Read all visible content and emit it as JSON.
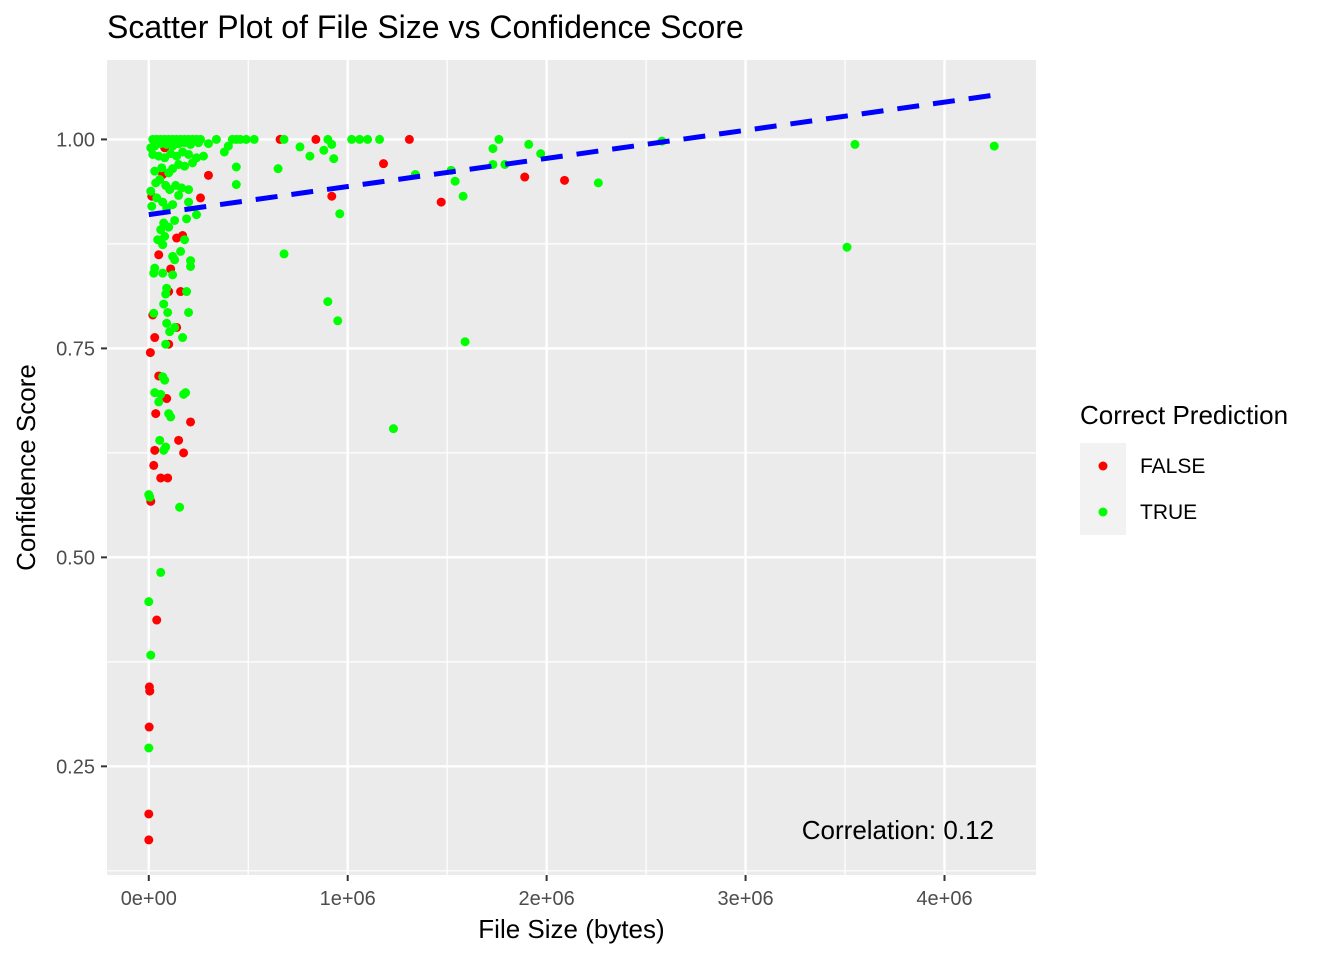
{
  "chart_data": {
    "type": "scatter",
    "title": "Scatter Plot of File Size vs Confidence Score",
    "xlabel": "File Size (bytes)",
    "ylabel": "Confidence Score",
    "xlim": [
      -210000,
      4460000
    ],
    "ylim": [
      0.12,
      1.095
    ],
    "x_ticks": [
      0,
      1000000,
      2000000,
      3000000,
      4000000
    ],
    "x_tick_labels": [
      "0e+00",
      "1e+06",
      "2e+06",
      "3e+06",
      "4e+06"
    ],
    "y_ticks": [
      0.25,
      0.5,
      0.75,
      1.0
    ],
    "y_tick_labels": [
      "0.25",
      "0.50",
      "0.75",
      "1.00"
    ],
    "grid": true,
    "legend": {
      "title": "Correct Prediction",
      "placement": "right",
      "entries": [
        {
          "label": "FALSE",
          "color": "#ff0000"
        },
        {
          "label": "TRUE",
          "color": "#00ff00"
        }
      ]
    },
    "annotation": "Correlation: 0.12",
    "trend_line": {
      "color": "#0000ff",
      "style": "dashed",
      "x": [
        0,
        4250000
      ],
      "y": [
        0.91,
        1.053
      ]
    },
    "series": [
      {
        "name": "FALSE",
        "color": "#ff0000",
        "points": [
          [
            0,
            0.162
          ],
          [
            0,
            0.193
          ],
          [
            2000,
            0.297
          ],
          [
            5000,
            0.34
          ],
          [
            3000,
            0.345
          ],
          [
            10000,
            0.567
          ],
          [
            25000,
            0.61
          ],
          [
            30000,
            0.628
          ],
          [
            60000,
            0.595
          ],
          [
            95000,
            0.595
          ],
          [
            150000,
            0.64
          ],
          [
            175000,
            0.625
          ],
          [
            210000,
            0.662
          ],
          [
            40000,
            0.425
          ],
          [
            35000,
            0.672
          ],
          [
            50000,
            0.717
          ],
          [
            90000,
            0.69
          ],
          [
            8000,
            0.745
          ],
          [
            30000,
            0.763
          ],
          [
            100000,
            0.755
          ],
          [
            20000,
            0.79
          ],
          [
            140000,
            0.775
          ],
          [
            100000,
            0.818
          ],
          [
            160000,
            0.818
          ],
          [
            110000,
            0.845
          ],
          [
            50000,
            0.862
          ],
          [
            140000,
            0.882
          ],
          [
            170000,
            0.885
          ],
          [
            15000,
            0.932
          ],
          [
            70000,
            0.958
          ],
          [
            260000,
            0.93
          ],
          [
            300000,
            0.957
          ],
          [
            80000,
            0.99
          ],
          [
            150000,
            0.995
          ],
          [
            660000,
            1.0
          ],
          [
            840000,
            1.0
          ],
          [
            1310000,
            1.0
          ],
          [
            920000,
            0.932
          ],
          [
            1180000,
            0.971
          ],
          [
            1470000,
            0.925
          ],
          [
            1890000,
            0.955
          ],
          [
            2090000,
            0.951
          ]
        ]
      },
      {
        "name": "TRUE",
        "color": "#00ff00",
        "points": [
          [
            0,
            0.272
          ],
          [
            10000,
            0.383
          ],
          [
            0,
            0.447
          ],
          [
            60000,
            0.482
          ],
          [
            155000,
            0.56
          ],
          [
            5000,
            0.572
          ],
          [
            0,
            0.575
          ],
          [
            55000,
            0.64
          ],
          [
            75000,
            0.628
          ],
          [
            85000,
            0.632
          ],
          [
            110000,
            0.668
          ],
          [
            100000,
            0.672
          ],
          [
            30000,
            0.697
          ],
          [
            175000,
            0.695
          ],
          [
            185000,
            0.697
          ],
          [
            80000,
            0.712
          ],
          [
            70000,
            0.716
          ],
          [
            50000,
            0.686
          ],
          [
            60000,
            0.695
          ],
          [
            25000,
            0.792
          ],
          [
            170000,
            0.763
          ],
          [
            85000,
            0.755
          ],
          [
            90000,
            0.78
          ],
          [
            130000,
            0.775
          ],
          [
            105000,
            0.77
          ],
          [
            95000,
            0.793
          ],
          [
            200000,
            0.793
          ],
          [
            75000,
            0.803
          ],
          [
            85000,
            0.815
          ],
          [
            90000,
            0.822
          ],
          [
            190000,
            0.818
          ],
          [
            25000,
            0.84
          ],
          [
            30000,
            0.846
          ],
          [
            70000,
            0.84
          ],
          [
            120000,
            0.838
          ],
          [
            210000,
            0.848
          ],
          [
            210000,
            0.855
          ],
          [
            160000,
            0.866
          ],
          [
            120000,
            0.86
          ],
          [
            130000,
            0.856
          ],
          [
            45000,
            0.88
          ],
          [
            70000,
            0.874
          ],
          [
            80000,
            0.884
          ],
          [
            60000,
            0.892
          ],
          [
            75000,
            0.9
          ],
          [
            100000,
            0.895
          ],
          [
            130000,
            0.903
          ],
          [
            180000,
            0.88
          ],
          [
            190000,
            0.905
          ],
          [
            15000,
            0.92
          ],
          [
            40000,
            0.93
          ],
          [
            70000,
            0.925
          ],
          [
            90000,
            0.918
          ],
          [
            120000,
            0.922
          ],
          [
            150000,
            0.933
          ],
          [
            200000,
            0.925
          ],
          [
            240000,
            0.91
          ],
          [
            10000,
            0.938
          ],
          [
            35000,
            0.948
          ],
          [
            55000,
            0.952
          ],
          [
            85000,
            0.945
          ],
          [
            105000,
            0.94
          ],
          [
            135000,
            0.945
          ],
          [
            165000,
            0.942
          ],
          [
            200000,
            0.94
          ],
          [
            30000,
            0.962
          ],
          [
            65000,
            0.966
          ],
          [
            100000,
            0.96
          ],
          [
            120000,
            0.965
          ],
          [
            150000,
            0.97
          ],
          [
            180000,
            0.968
          ],
          [
            220000,
            0.972
          ],
          [
            20000,
            0.982
          ],
          [
            50000,
            0.98
          ],
          [
            80000,
            0.978
          ],
          [
            110000,
            0.983
          ],
          [
            140000,
            0.98
          ],
          [
            170000,
            0.985
          ],
          [
            200000,
            0.982
          ],
          [
            240000,
            0.978
          ],
          [
            275000,
            0.98
          ],
          [
            10000,
            0.99
          ],
          [
            30000,
            0.992
          ],
          [
            60000,
            0.995
          ],
          [
            90000,
            0.994
          ],
          [
            120000,
            0.992
          ],
          [
            150000,
            0.995
          ],
          [
            180000,
            0.996
          ],
          [
            210000,
            0.994
          ],
          [
            250000,
            0.996
          ],
          [
            20000,
            1.0
          ],
          [
            40000,
            1.0
          ],
          [
            60000,
            1.0
          ],
          [
            80000,
            1.0
          ],
          [
            100000,
            1.0
          ],
          [
            120000,
            1.0
          ],
          [
            140000,
            1.0
          ],
          [
            160000,
            1.0
          ],
          [
            180000,
            1.0
          ],
          [
            200000,
            1.0
          ],
          [
            220000,
            1.0
          ],
          [
            240000,
            1.0
          ],
          [
            260000,
            1.0
          ],
          [
            300000,
            0.995
          ],
          [
            340000,
            1.0
          ],
          [
            380000,
            0.985
          ],
          [
            400000,
            0.992
          ],
          [
            420000,
            1.0
          ],
          [
            440000,
            1.0
          ],
          [
            460000,
            1.0
          ],
          [
            490000,
            1.0
          ],
          [
            530000,
            1.0
          ],
          [
            440000,
            0.967
          ],
          [
            440000,
            0.946
          ],
          [
            650000,
            0.965
          ],
          [
            680000,
            1.0
          ],
          [
            680000,
            0.863
          ],
          [
            760000,
            0.991
          ],
          [
            810000,
            0.98
          ],
          [
            880000,
            0.987
          ],
          [
            900000,
            1.0
          ],
          [
            920000,
            0.994
          ],
          [
            930000,
            0.977
          ],
          [
            960000,
            0.911
          ],
          [
            900000,
            0.806
          ],
          [
            950000,
            0.783
          ],
          [
            1020000,
            1.0
          ],
          [
            1060000,
            1.0
          ],
          [
            1100000,
            1.0
          ],
          [
            1160000,
            1.0
          ],
          [
            1230000,
            0.654
          ],
          [
            1340000,
            0.958
          ],
          [
            1520000,
            0.963
          ],
          [
            1540000,
            0.95
          ],
          [
            1580000,
            0.932
          ],
          [
            1590000,
            0.758
          ],
          [
            1730000,
            0.989
          ],
          [
            1730000,
            0.97
          ],
          [
            1760000,
            1.0
          ],
          [
            1790000,
            0.97
          ],
          [
            1910000,
            0.994
          ],
          [
            1970000,
            0.983
          ],
          [
            2260000,
            0.948
          ],
          [
            2580000,
            0.998
          ],
          [
            3510000,
            0.871
          ],
          [
            3550000,
            0.994
          ],
          [
            4250000,
            0.992
          ]
        ]
      }
    ]
  }
}
